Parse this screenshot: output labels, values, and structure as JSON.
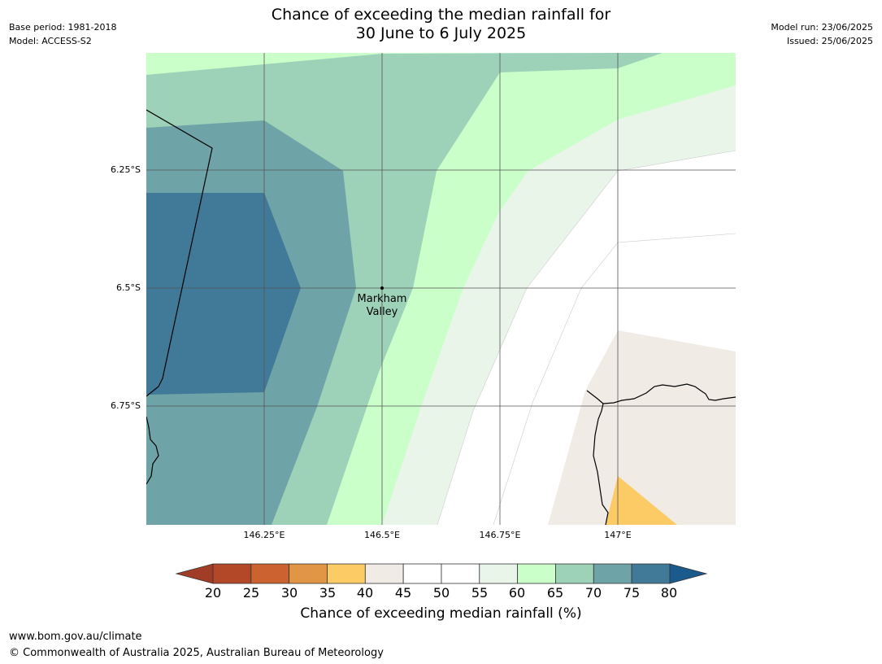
{
  "header": {
    "base_period": "Base period: 1981-2018",
    "model": "Model: ACCESS-S2",
    "model_run": "Model run: 23/06/2025",
    "issued": "Issued: 25/06/2025",
    "title_line1": "Chance of exceeding the median rainfall for",
    "title_line2": "30 June to 6 July 2025"
  },
  "map": {
    "place_label_line1": "Markham",
    "place_label_line2": "Valley",
    "lat_labels": [
      "6.25°S",
      "6.5°S",
      "6.75°S"
    ],
    "lon_labels": [
      "146.25°E",
      "146.5°E",
      "146.75°E",
      "147°E"
    ]
  },
  "colorbar": {
    "label": "Chance of exceeding median rainfall (%)",
    "ticks": [
      "20",
      "25",
      "30",
      "35",
      "40",
      "45",
      "50",
      "55",
      "60",
      "65",
      "70",
      "75",
      "80"
    ],
    "colors": [
      "#a13c27",
      "#b34828",
      "#cc6230",
      "#e19645",
      "#fdcb66",
      "#f0ebe5",
      "#ffffff",
      "#ffffff",
      "#eaf5ea",
      "#caffca",
      "#9dd1b8",
      "#6ea4a8",
      "#417a99",
      "#1b5a8d"
    ]
  },
  "footer": {
    "url": "www.bom.gov.au/climate",
    "copyright": "© Commonwealth of Australia 2025, Australian Bureau of Meteorology"
  }
}
